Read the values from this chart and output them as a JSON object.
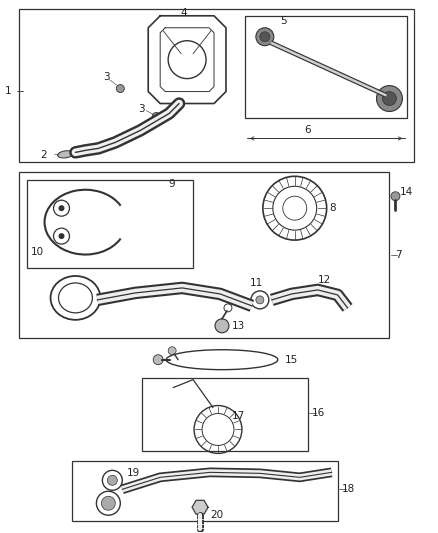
{
  "bg_color": "#ffffff",
  "line_color": "#444444",
  "text_color": "#222222",
  "fig_w": 4.38,
  "fig_h": 5.33,
  "dpi": 100
}
